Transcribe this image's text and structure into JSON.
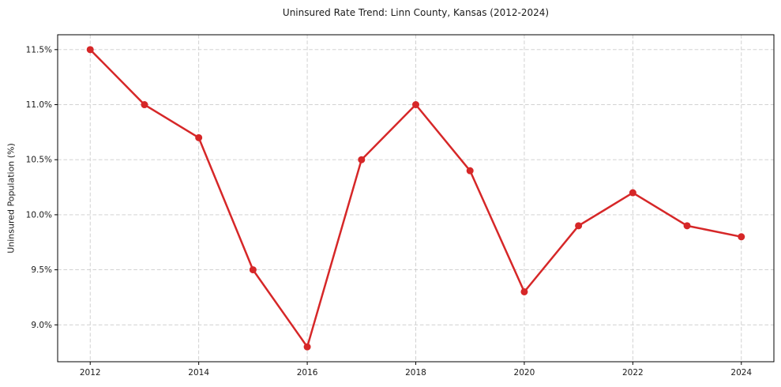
{
  "figure": {
    "background": "#ffffff"
  },
  "chart_data": {
    "type": "line",
    "title": "Uninsured Rate Trend: Linn County, Kansas (2012-2024)",
    "xlabel": "",
    "ylabel": "Uninsured Population (%)",
    "x": [
      2012,
      2013,
      2014,
      2015,
      2016,
      2017,
      2018,
      2019,
      2020,
      2021,
      2022,
      2023,
      2024
    ],
    "values": [
      11.5,
      11.0,
      10.7,
      9.5,
      8.8,
      10.5,
      11.0,
      10.4,
      9.3,
      9.9,
      10.2,
      9.9,
      9.8
    ],
    "xlim": [
      2011.4,
      2024.6
    ],
    "ylim": [
      8.665,
      11.635
    ],
    "xticks": [
      {
        "value": 2012,
        "label": "2012"
      },
      {
        "value": 2014,
        "label": "2014"
      },
      {
        "value": 2016,
        "label": "2016"
      },
      {
        "value": 2018,
        "label": "2018"
      },
      {
        "value": 2020,
        "label": "2020"
      },
      {
        "value": 2022,
        "label": "2022"
      },
      {
        "value": 2024,
        "label": "2024"
      }
    ],
    "yticks": [
      {
        "value": 9.0,
        "label": "9.0%"
      },
      {
        "value": 9.5,
        "label": "9.5%"
      },
      {
        "value": 10.0,
        "label": "10.0%"
      },
      {
        "value": 10.5,
        "label": "10.5%"
      },
      {
        "value": 11.0,
        "label": "11.0%"
      },
      {
        "value": 11.5,
        "label": "11.5%"
      }
    ],
    "grid": true,
    "grid_style": "dashed",
    "legend_position": "none",
    "colors": {
      "line": "#d62728",
      "marker": "#d62728",
      "grid": "#cccccc",
      "axis": "#000000",
      "text": "#1a1a1a"
    }
  }
}
